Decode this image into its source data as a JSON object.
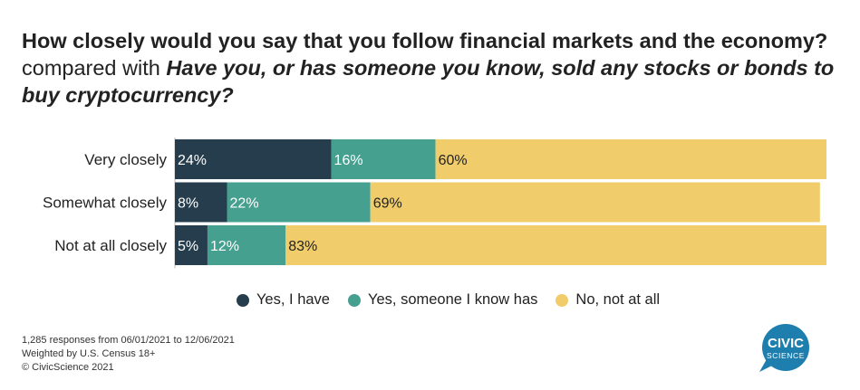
{
  "title": {
    "bold_part": "How closely would you say that you follow financial markets and the economy?",
    "connector": " compared with ",
    "italic_part": "Have you, or has someone you know, sold any stocks or bonds to buy cryptocurrency?"
  },
  "chart_data": {
    "type": "bar",
    "orientation": "horizontal",
    "stacked": true,
    "percent_stacked": true,
    "categories": [
      "Very closely",
      "Somewhat closely",
      "Not at all closely"
    ],
    "series": [
      {
        "name": "Yes, I have",
        "color": "#253d4c",
        "values": [
          24,
          8,
          5
        ],
        "labels": [
          "24%",
          "8%",
          "5%"
        ]
      },
      {
        "name": "Yes, someone I know has",
        "color": "#46a08f",
        "values": [
          16,
          22,
          12
        ],
        "labels": [
          "16%",
          "22%",
          "12%"
        ]
      },
      {
        "name": "No, not at all",
        "color": "#f0cd6a",
        "values": [
          60,
          69,
          83
        ],
        "labels": [
          "60%",
          "69%",
          "83%"
        ]
      }
    ],
    "xlim": [
      0,
      100
    ],
    "grid": false,
    "legend_position": "bottom"
  },
  "footnote": {
    "line1": "1,285 responses from 06/01/2021 to 12/06/2021",
    "line2": "Weighted by U.S. Census 18+",
    "line3": "© CivicScience 2021"
  },
  "logo": {
    "line1": "CIVIC",
    "line2": "SCIENCE",
    "color": "#1e7fae"
  }
}
